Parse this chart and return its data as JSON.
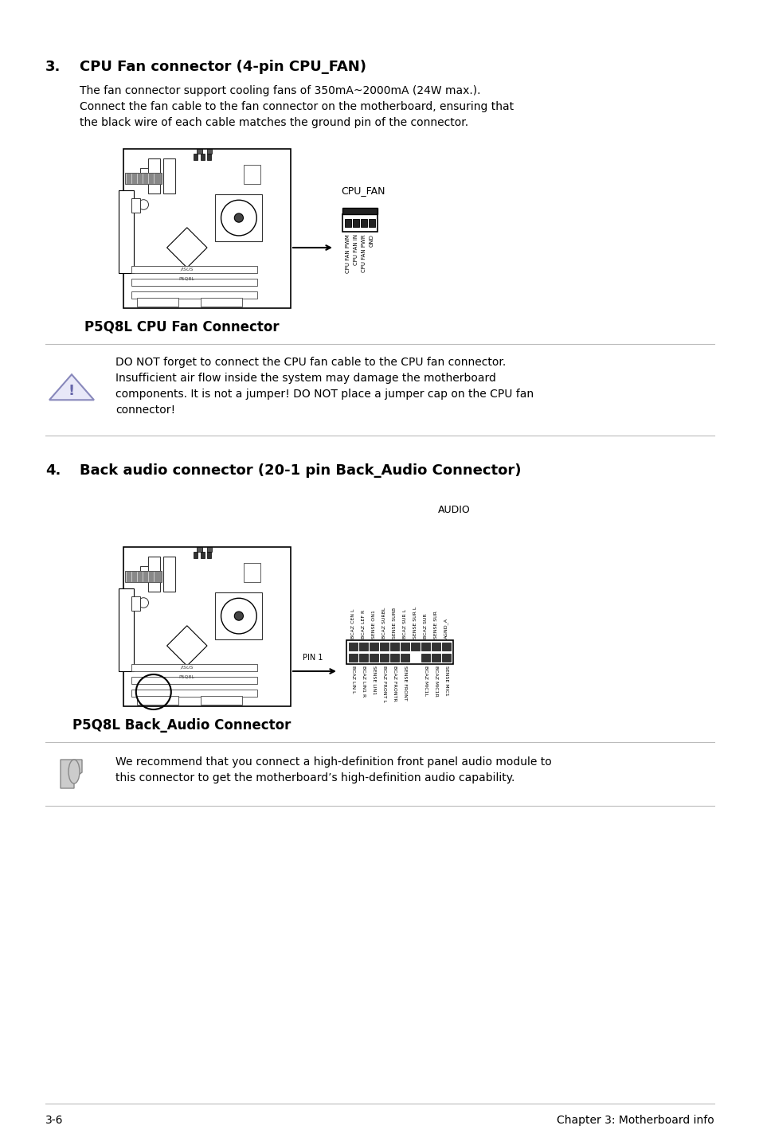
{
  "page_bg": "#ffffff",
  "page_number": "3-6",
  "chapter_text": "Chapter 3: Motherboard info",
  "section3_number": "3.",
  "section3_title": "CPU Fan connector (4-pin CPU_FAN)",
  "section3_body": "The fan connector support cooling fans of 350mA~2000mA (24W max.).\nConnect the fan cable to the fan connector on the motherboard, ensuring that\nthe black wire of each cable matches the ground pin of the connector.",
  "cpu_fan_caption": "P5Q8L CPU Fan Connector",
  "cpu_fan_label": "CPU_FAN",
  "cpu_fan_pins": [
    "CPU FAN PWM",
    "CPU FAN IN",
    "CPU FAN PWR",
    "GND"
  ],
  "caution_text": "DO NOT forget to connect the CPU fan cable to the CPU fan connector.\nInsufficient air flow inside the system may damage the motherboard\ncomponents. It is not a jumper! DO NOT place a jumper cap on the CPU fan\nconnector!",
  "section4_number": "4.",
  "section4_title": "Back audio connector (20-1 pin Back_Audio Connector)",
  "audio_label": "AUDIO",
  "audio_caption": "P5Q8L Back_Audio Connector",
  "audio_pin1_label": "PIN 1",
  "audio_top_pins": [
    "BCAZ CEN L",
    "BCAZ LEF R",
    "SENSE ON1",
    "BCAZ SURBL",
    "SENSE SURB",
    "BCAZ SUR L",
    "SENSE SUR L",
    "BCAZ SUR",
    "SENSE SUR",
    "AGND_A"
  ],
  "audio_bottom_pins": [
    "BCAZ LIN L",
    "BCAZ LIN1 R",
    "SENSE LIN1",
    "BCAZ FRONT L",
    "BCAZ FRONTR",
    "SENSE FRONT",
    "",
    "BCAZ MIC1L",
    "BCAZ MIC1R",
    "SENSE MIC1"
  ],
  "note_text": "We recommend that you connect a high-definition front panel audio module to\nthis connector to get the motherboard’s high-definition audio capability.",
  "text_color": "#000000",
  "line_color": "#cccccc"
}
